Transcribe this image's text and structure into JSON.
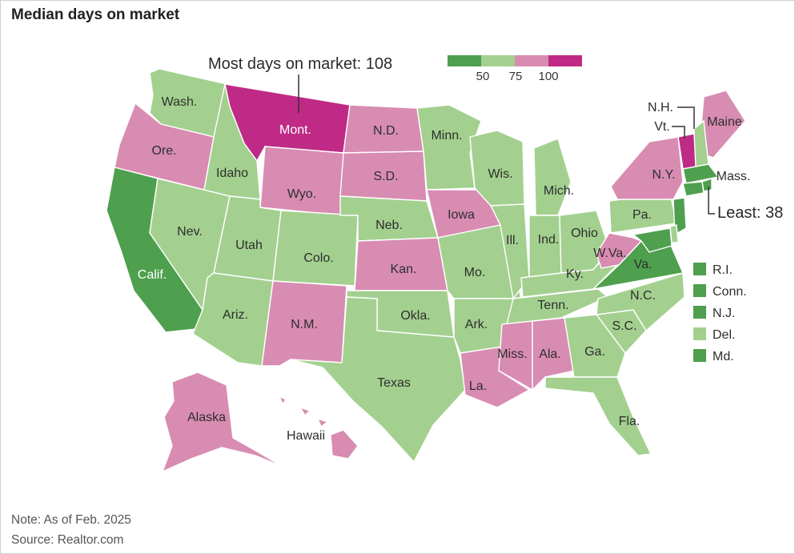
{
  "title": "Median days on market",
  "note": "Note: As of Feb. 2025",
  "source": "Source: Realtor.com",
  "colors": {
    "dark_green": "#4e9f4e",
    "light_green": "#a3d08f",
    "pink": "#d88cb2",
    "magenta": "#bf2a86"
  },
  "legend": {
    "ticks": [
      "50",
      "75",
      "100"
    ]
  },
  "callouts": {
    "most": "Most days on market: 108",
    "least": "Least: 38"
  },
  "labels": {
    "wa": "Wash.",
    "or": "Ore.",
    "ca": "Calif.",
    "nv": "Nev.",
    "id": "Idaho",
    "mt": "Mont.",
    "wy": "Wyo.",
    "ut": "Utah",
    "az": "Ariz.",
    "co": "Colo.",
    "nm": "N.M.",
    "nd": "N.D.",
    "sd": "S.D.",
    "ne": "Neb.",
    "ks": "Kan.",
    "ok": "Okla.",
    "tx": "Texas",
    "mn": "Minn.",
    "ia": "Iowa",
    "mo": "Mo.",
    "ar": "Ark.",
    "la": "La.",
    "wi": "Wis.",
    "il": "Ill.",
    "mi": "Mich.",
    "in": "Ind.",
    "oh": "Ohio",
    "ky": "Ky.",
    "tn": "Tenn.",
    "ms": "Miss.",
    "al": "Ala.",
    "ga": "Ga.",
    "fl": "Fla.",
    "sc": "S.C.",
    "nc": "N.C.",
    "va": "Va.",
    "wv": "W.Va.",
    "pa": "Pa.",
    "ny": "N.Y.",
    "me": "Maine",
    "nh": "N.H.",
    "vt": "Vt.",
    "ma": "Mass.",
    "ak": "Alaska",
    "hi": "Hawaii"
  },
  "small_states": [
    {
      "label": "R.I.",
      "category": "dark_green"
    },
    {
      "label": "Conn.",
      "category": "dark_green"
    },
    {
      "label": "N.J.",
      "category": "dark_green"
    },
    {
      "label": "Del.",
      "category": "light_green"
    },
    {
      "label": "Md.",
      "category": "dark_green"
    }
  ],
  "state_categories": {
    "wa": "light_green",
    "or": "pink",
    "ca": "dark_green",
    "nv": "light_green",
    "id": "light_green",
    "mt": "magenta",
    "wy": "pink",
    "ut": "light_green",
    "az": "light_green",
    "co": "light_green",
    "nm": "pink",
    "nd": "pink",
    "sd": "pink",
    "ne": "light_green",
    "ks": "pink",
    "ok": "light_green",
    "tx": "light_green",
    "mn": "light_green",
    "ia": "pink",
    "mo": "light_green",
    "ar": "light_green",
    "la": "pink",
    "wi": "light_green",
    "il": "light_green",
    "mi": "light_green",
    "in": "light_green",
    "oh": "light_green",
    "ky": "light_green",
    "tn": "light_green",
    "ms": "pink",
    "al": "pink",
    "ga": "light_green",
    "fl": "light_green",
    "sc": "light_green",
    "nc": "light_green",
    "va": "dark_green",
    "wv": "pink",
    "pa": "light_green",
    "ny": "pink",
    "me": "pink",
    "nh": "light_green",
    "vt": "magenta",
    "ma": "dark_green",
    "ri": "dark_green",
    "ct": "dark_green",
    "nj": "dark_green",
    "de": "light_green",
    "md": "dark_green",
    "ak": "pink",
    "hi": "pink"
  }
}
